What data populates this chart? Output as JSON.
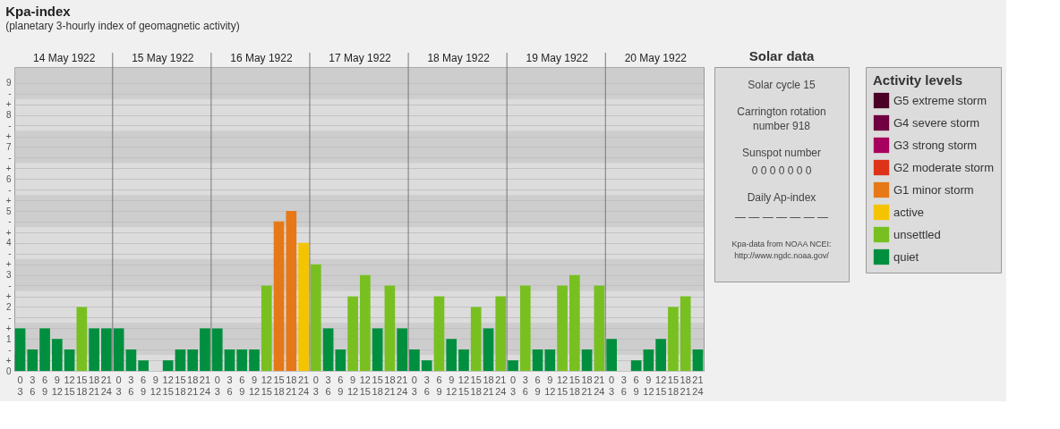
{
  "chart_data": [
    {
      "type": "bar",
      "title": "Kpa-index",
      "subtitle": "(planetary 3-hourly index of geomagnetic activity)",
      "categories": [
        "0\n3",
        "3\n6",
        "6\n9",
        "9\n12",
        "12\n15",
        "15\n18",
        "18\n21",
        "21\n24",
        "0\n3",
        "3\n6",
        "6\n9",
        "9\n12",
        "12\n15",
        "15\n18",
        "18\n21",
        "21\n24",
        "0\n3",
        "3\n6",
        "6\n9",
        "9\n12",
        "12\n15",
        "15\n18",
        "18\n21",
        "21\n24",
        "0\n3",
        "3\n6",
        "6\n9",
        "9\n12",
        "12\n15",
        "15\n18",
        "18\n21",
        "21\n24",
        "0\n3",
        "3\n6",
        "6\n9",
        "9\n12",
        "12\n15",
        "15\n18",
        "18\n21",
        "21\n24",
        "0\n3",
        "3\n6",
        "6\n9",
        "9\n12",
        "12\n15",
        "15\n18",
        "18\n21",
        "21\n24",
        "0\n3",
        "3\n6",
        "6\n9",
        "9\n12",
        "12\n15",
        "15\n18",
        "18\n21",
        "21\n24"
      ],
      "series": [
        {
          "name": "G5 extreme storm",
          "color": "#4a0026",
          "values": [
            null,
            null,
            null,
            null,
            null,
            null,
            null,
            null,
            null,
            null,
            null,
            null,
            null,
            null,
            null,
            null,
            null,
            null,
            null,
            null,
            null,
            null,
            null,
            null,
            null,
            null,
            null,
            null,
            null,
            null,
            null,
            null,
            null,
            null,
            null,
            null,
            null,
            null,
            null,
            null,
            null,
            null,
            null,
            null,
            null,
            null,
            null,
            null,
            null,
            null,
            null,
            null,
            null,
            null,
            null,
            null
          ]
        },
        {
          "name": "G4 severe storm",
          "color": "#700040",
          "values": [
            null,
            null,
            null,
            null,
            null,
            null,
            null,
            null,
            null,
            null,
            null,
            null,
            null,
            null,
            null,
            null,
            null,
            null,
            null,
            null,
            null,
            null,
            null,
            null,
            null,
            null,
            null,
            null,
            null,
            null,
            null,
            null,
            null,
            null,
            null,
            null,
            null,
            null,
            null,
            null,
            null,
            null,
            null,
            null,
            null,
            null,
            null,
            null,
            null,
            null,
            null,
            null,
            null,
            null,
            null,
            null
          ]
        },
        {
          "name": "G3 strong storm",
          "color": "#a8005f",
          "values": [
            null,
            null,
            null,
            null,
            null,
            null,
            null,
            null,
            null,
            null,
            null,
            null,
            null,
            null,
            null,
            null,
            null,
            null,
            null,
            null,
            null,
            null,
            null,
            null,
            null,
            null,
            null,
            null,
            null,
            null,
            null,
            null,
            null,
            null,
            null,
            null,
            null,
            null,
            null,
            null,
            null,
            null,
            null,
            null,
            null,
            null,
            null,
            null,
            null,
            null,
            null,
            null,
            null,
            null,
            null,
            null
          ]
        },
        {
          "name": "G2 moderate storm",
          "color": "#dd3318",
          "values": [
            null,
            null,
            null,
            null,
            null,
            null,
            null,
            null,
            null,
            null,
            null,
            null,
            null,
            null,
            null,
            null,
            null,
            null,
            null,
            null,
            null,
            null,
            null,
            null,
            null,
            null,
            null,
            null,
            null,
            null,
            null,
            null,
            null,
            null,
            null,
            null,
            null,
            null,
            null,
            null,
            null,
            null,
            null,
            null,
            null,
            null,
            null,
            null,
            null,
            null,
            null,
            null,
            null,
            null,
            null,
            null
          ]
        },
        {
          "name": "G1 minor storm",
          "color": "#e67817",
          "values": [
            null,
            null,
            null,
            null,
            null,
            null,
            null,
            null,
            null,
            null,
            null,
            null,
            null,
            null,
            null,
            null,
            null,
            null,
            null,
            null,
            null,
            4.67,
            5,
            null,
            null,
            null,
            null,
            null,
            null,
            null,
            null,
            null,
            null,
            null,
            null,
            null,
            null,
            null,
            null,
            null,
            null,
            null,
            null,
            null,
            null,
            null,
            null,
            null,
            null,
            null,
            null,
            null,
            null,
            null,
            null,
            null
          ]
        },
        {
          "name": "active",
          "color": "#f5c400",
          "values": [
            null,
            null,
            null,
            null,
            null,
            null,
            null,
            null,
            null,
            null,
            null,
            null,
            null,
            null,
            null,
            null,
            null,
            null,
            null,
            null,
            null,
            null,
            null,
            4,
            null,
            null,
            null,
            null,
            null,
            null,
            null,
            null,
            null,
            null,
            null,
            null,
            null,
            null,
            null,
            null,
            null,
            null,
            null,
            null,
            null,
            null,
            null,
            null,
            null,
            null,
            null,
            null,
            null,
            null,
            null,
            null
          ]
        },
        {
          "name": "unsettled",
          "color": "#78c020",
          "values": [
            null,
            null,
            null,
            null,
            null,
            2,
            null,
            null,
            null,
            null,
            null,
            null,
            null,
            null,
            null,
            null,
            null,
            null,
            null,
            null,
            2.67,
            null,
            null,
            null,
            3.33,
            null,
            null,
            2.33,
            3,
            null,
            2.67,
            null,
            null,
            null,
            2.33,
            null,
            null,
            2,
            null,
            2.33,
            null,
            2.67,
            null,
            null,
            2.67,
            3,
            null,
            2.67,
            null,
            null,
            null,
            null,
            null,
            2,
            2.33,
            null
          ]
        },
        {
          "name": "quiet",
          "color": "#008f3e",
          "values": [
            1.33,
            0.67,
            1.33,
            1,
            0.67,
            null,
            1.33,
            1.33,
            1.33,
            0.67,
            0.33,
            0,
            0.33,
            0.67,
            0.67,
            1.33,
            1.33,
            0.67,
            0.67,
            0.67,
            null,
            null,
            null,
            null,
            null,
            1.33,
            0.67,
            null,
            null,
            1.33,
            null,
            1.33,
            0.67,
            0.33,
            null,
            1,
            0.67,
            null,
            1.33,
            null,
            0.33,
            null,
            0.67,
            0.67,
            null,
            null,
            0.67,
            null,
            1,
            0,
            0.33,
            0.67,
            1,
            null,
            null,
            0.67
          ]
        }
      ],
      "ylim": [
        0,
        9.5
      ],
      "yticks": [
        0,
        {
          "value": 0.33,
          "label": "+"
        },
        {
          "value": 0.67,
          "label": "-"
        },
        1,
        {
          "value": 1.33,
          "label": "+"
        },
        {
          "value": 1.67,
          "label": "-"
        },
        2,
        {
          "value": 2.33,
          "label": "+"
        },
        {
          "value": 2.67,
          "label": "-"
        },
        3,
        {
          "value": 3.33,
          "label": "+"
        },
        {
          "value": 3.67,
          "label": "-"
        },
        4,
        {
          "value": 4.33,
          "label": "+"
        },
        {
          "value": 4.67,
          "label": "-"
        },
        5,
        {
          "value": 5.33,
          "label": "+"
        },
        {
          "value": 5.67,
          "label": "-"
        },
        6,
        {
          "value": 6.33,
          "label": "+"
        },
        {
          "value": 6.67,
          "label": "-"
        },
        7,
        {
          "value": 7.33,
          "label": "+"
        },
        {
          "value": 7.67,
          "label": "-"
        },
        8,
        {
          "value": 8.33,
          "label": "+"
        },
        {
          "value": 8.67,
          "label": "-"
        },
        9
      ],
      "bands": [
        {
          "axis": "y",
          "from": 0.5,
          "to": 1.5,
          "color": "#bdbdbd"
        },
        {
          "axis": "y",
          "from": 2.5,
          "to": 3.5,
          "color": "#bdbdbd"
        },
        {
          "axis": "y",
          "from": 4.5,
          "to": 5.5,
          "color": "#bdbdbd"
        },
        {
          "axis": "y",
          "from": 6.5,
          "to": 7.5,
          "color": "#bdbdbd"
        },
        {
          "axis": "y",
          "from": 8.5,
          "to": 9.5,
          "color": "#bdbdbd"
        }
      ],
      "annotations": [
        "14 May 1922",
        "15 May 1922",
        "16 May 1922",
        "17 May 1922",
        "18 May 1922",
        "19 May 1922",
        "20 May 1922"
      ],
      "grid": "y",
      "legend": "right",
      "legend_title": "Activity levels"
    },
    {
      "type": "other",
      "title": "Solar data",
      "annotations": [
        "Solar cycle 15",
        "Carrington rotation",
        "number 918",
        "Sunspot number",
        "0   0   0   0   0   0   0",
        "Daily Ap-index",
        "—  —  —  —  —  —  —",
        "Kpa-data from NOAA NCEI:",
        "http://www.ngdc.noaa.gov/"
      ]
    }
  ]
}
